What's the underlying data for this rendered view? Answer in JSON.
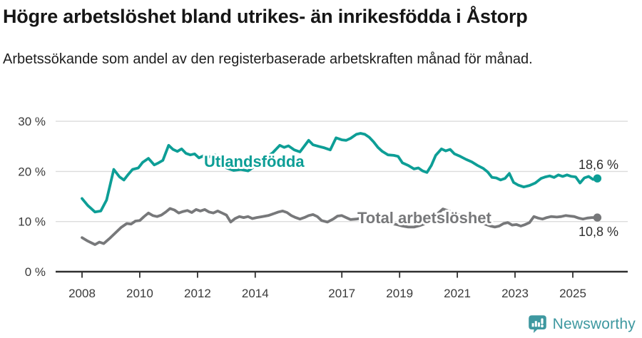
{
  "header": {
    "title": "Högre arbetslöshet bland utrikes- än inrikesfödda i Åstorp",
    "subtitle": "Arbetssökande som andel av den registerbaserade arbetskraften månad för månad."
  },
  "footer": {
    "brand": "Newsworthy"
  },
  "colors": {
    "accent_teal": "#0d9e96",
    "series_gray": "#77787a",
    "logo_teal": "#3e98a0",
    "grid": "#dcdcdc",
    "axis": "#2f2f2f"
  },
  "chart_data": {
    "type": "line",
    "title": "Högre arbetslöshet bland utrikes- än inrikesfödda i Åstorp",
    "subtitle": "Arbetssökande som andel av den registerbaserade arbetskraften månad för månad.",
    "xlabel": "",
    "ylabel": "",
    "grid": "horizontal",
    "legend_position": "inline-labels",
    "xlim": [
      2007.1,
      2026.8
    ],
    "ylim": [
      0,
      31
    ],
    "x_ticks": [
      2008,
      2010,
      2012,
      2014,
      2017,
      2019,
      2021,
      2023,
      2025
    ],
    "y_ticks": [
      {
        "value": 0,
        "label": "0 %"
      },
      {
        "value": 10,
        "label": "10 %"
      },
      {
        "value": 20,
        "label": "20 %"
      },
      {
        "value": 30,
        "label": "30 %"
      }
    ],
    "series": [
      {
        "name": "Utlandsfödda",
        "color": "#0d9e96",
        "end_label": "18,6 %",
        "end_value": 18.6,
        "points": [
          [
            2008.0,
            14.6
          ],
          [
            2008.2,
            13.2
          ],
          [
            2008.45,
            11.9
          ],
          [
            2008.65,
            12.1
          ],
          [
            2008.85,
            14.3
          ],
          [
            2009.1,
            20.4
          ],
          [
            2009.3,
            18.9
          ],
          [
            2009.45,
            18.3
          ],
          [
            2009.6,
            19.4
          ],
          [
            2009.75,
            20.4
          ],
          [
            2009.95,
            20.7
          ],
          [
            2010.1,
            21.8
          ],
          [
            2010.3,
            22.6
          ],
          [
            2010.5,
            21.3
          ],
          [
            2010.65,
            21.7
          ],
          [
            2010.8,
            22.2
          ],
          [
            2011.0,
            25.2
          ],
          [
            2011.15,
            24.4
          ],
          [
            2011.3,
            24.0
          ],
          [
            2011.45,
            24.5
          ],
          [
            2011.6,
            23.6
          ],
          [
            2011.75,
            23.3
          ],
          [
            2011.9,
            23.5
          ],
          [
            2012.05,
            22.7
          ],
          [
            2012.2,
            23.1
          ],
          [
            2012.4,
            22.9
          ],
          [
            2012.6,
            23.3
          ],
          [
            2012.8,
            21.9
          ],
          [
            2013.0,
            20.7
          ],
          [
            2013.25,
            20.2
          ],
          [
            2013.5,
            20.4
          ],
          [
            2013.75,
            20.1
          ],
          [
            2014.0,
            21.1
          ],
          [
            2014.2,
            22.1
          ],
          [
            2014.4,
            22.9
          ],
          [
            2014.6,
            23.7
          ],
          [
            2014.85,
            25.2
          ],
          [
            2015.0,
            24.8
          ],
          [
            2015.15,
            25.1
          ],
          [
            2015.35,
            24.3
          ],
          [
            2015.55,
            23.9
          ],
          [
            2015.85,
            26.2
          ],
          [
            2016.0,
            25.3
          ],
          [
            2016.2,
            25.0
          ],
          [
            2016.4,
            24.7
          ],
          [
            2016.6,
            24.3
          ],
          [
            2016.8,
            26.7
          ],
          [
            2017.0,
            26.3
          ],
          [
            2017.15,
            26.2
          ],
          [
            2017.3,
            26.6
          ],
          [
            2017.5,
            27.4
          ],
          [
            2017.65,
            27.6
          ],
          [
            2017.8,
            27.4
          ],
          [
            2017.95,
            26.8
          ],
          [
            2018.1,
            25.9
          ],
          [
            2018.25,
            24.8
          ],
          [
            2018.4,
            24.0
          ],
          [
            2018.6,
            23.3
          ],
          [
            2018.8,
            23.2
          ],
          [
            2018.95,
            23.0
          ],
          [
            2019.1,
            21.7
          ],
          [
            2019.3,
            21.2
          ],
          [
            2019.5,
            20.5
          ],
          [
            2019.65,
            20.7
          ],
          [
            2019.8,
            20.1
          ],
          [
            2019.95,
            19.8
          ],
          [
            2020.1,
            21.2
          ],
          [
            2020.25,
            23.2
          ],
          [
            2020.45,
            24.5
          ],
          [
            2020.6,
            24.1
          ],
          [
            2020.75,
            24.4
          ],
          [
            2020.9,
            23.5
          ],
          [
            2021.1,
            23.0
          ],
          [
            2021.3,
            22.4
          ],
          [
            2021.5,
            21.9
          ],
          [
            2021.7,
            21.2
          ],
          [
            2021.9,
            20.6
          ],
          [
            2022.05,
            19.9
          ],
          [
            2022.2,
            18.8
          ],
          [
            2022.35,
            18.7
          ],
          [
            2022.5,
            18.3
          ],
          [
            2022.65,
            18.6
          ],
          [
            2022.8,
            19.6
          ],
          [
            2022.95,
            17.8
          ],
          [
            2023.1,
            17.3
          ],
          [
            2023.3,
            16.9
          ],
          [
            2023.5,
            17.2
          ],
          [
            2023.7,
            17.7
          ],
          [
            2023.9,
            18.6
          ],
          [
            2024.05,
            18.9
          ],
          [
            2024.2,
            19.1
          ],
          [
            2024.35,
            18.8
          ],
          [
            2024.5,
            19.3
          ],
          [
            2024.65,
            19.0
          ],
          [
            2024.8,
            19.3
          ],
          [
            2024.95,
            19.0
          ],
          [
            2025.1,
            18.9
          ],
          [
            2025.25,
            17.7
          ],
          [
            2025.4,
            18.7
          ],
          [
            2025.55,
            19.0
          ],
          [
            2025.7,
            18.4
          ],
          [
            2025.85,
            18.6
          ]
        ]
      },
      {
        "name": "Total arbetslöshet",
        "color": "#77787a",
        "end_label": "10,8 %",
        "end_value": 10.8,
        "points": [
          [
            2008.0,
            6.8
          ],
          [
            2008.2,
            6.1
          ],
          [
            2008.45,
            5.4
          ],
          [
            2008.6,
            5.9
          ],
          [
            2008.75,
            5.6
          ],
          [
            2008.95,
            6.6
          ],
          [
            2009.15,
            7.7
          ],
          [
            2009.35,
            8.8
          ],
          [
            2009.55,
            9.6
          ],
          [
            2009.7,
            9.5
          ],
          [
            2009.85,
            10.1
          ],
          [
            2010.0,
            10.2
          ],
          [
            2010.15,
            11.0
          ],
          [
            2010.3,
            11.7
          ],
          [
            2010.45,
            11.2
          ],
          [
            2010.6,
            11.0
          ],
          [
            2010.75,
            11.3
          ],
          [
            2010.9,
            11.9
          ],
          [
            2011.05,
            12.6
          ],
          [
            2011.2,
            12.3
          ],
          [
            2011.35,
            11.7
          ],
          [
            2011.5,
            12.0
          ],
          [
            2011.65,
            12.2
          ],
          [
            2011.8,
            11.8
          ],
          [
            2011.95,
            12.4
          ],
          [
            2012.1,
            12.1
          ],
          [
            2012.25,
            12.4
          ],
          [
            2012.4,
            11.9
          ],
          [
            2012.55,
            11.7
          ],
          [
            2012.7,
            12.1
          ],
          [
            2012.85,
            11.7
          ],
          [
            2013.0,
            11.3
          ],
          [
            2013.15,
            9.9
          ],
          [
            2013.3,
            10.6
          ],
          [
            2013.45,
            11.0
          ],
          [
            2013.6,
            10.8
          ],
          [
            2013.75,
            11.0
          ],
          [
            2013.9,
            10.6
          ],
          [
            2014.05,
            10.8
          ],
          [
            2014.25,
            11.0
          ],
          [
            2014.45,
            11.2
          ],
          [
            2014.65,
            11.6
          ],
          [
            2014.8,
            11.9
          ],
          [
            2014.95,
            12.1
          ],
          [
            2015.1,
            11.8
          ],
          [
            2015.25,
            11.2
          ],
          [
            2015.4,
            10.8
          ],
          [
            2015.55,
            10.5
          ],
          [
            2015.7,
            10.8
          ],
          [
            2015.85,
            11.2
          ],
          [
            2016.0,
            11.4
          ],
          [
            2016.15,
            11.0
          ],
          [
            2016.3,
            10.2
          ],
          [
            2016.5,
            9.9
          ],
          [
            2016.7,
            10.5
          ],
          [
            2016.85,
            11.1
          ],
          [
            2017.0,
            11.2
          ],
          [
            2017.15,
            10.8
          ],
          [
            2017.3,
            10.4
          ],
          [
            2017.5,
            10.5
          ],
          [
            2017.7,
            10.7
          ],
          [
            2017.9,
            10.4
          ],
          [
            2018.1,
            10.2
          ],
          [
            2018.3,
            10.0
          ],
          [
            2018.5,
            9.8
          ],
          [
            2018.7,
            9.6
          ],
          [
            2018.9,
            9.4
          ],
          [
            2019.1,
            9.1
          ],
          [
            2019.3,
            8.9
          ],
          [
            2019.5,
            8.9
          ],
          [
            2019.7,
            9.2
          ],
          [
            2019.9,
            9.6
          ],
          [
            2020.1,
            10.4
          ],
          [
            2020.3,
            11.5
          ],
          [
            2020.5,
            12.5
          ],
          [
            2020.65,
            12.2
          ],
          [
            2020.8,
            11.9
          ],
          [
            2021.0,
            11.5
          ],
          [
            2021.2,
            11.0
          ],
          [
            2021.4,
            10.6
          ],
          [
            2021.6,
            10.2
          ],
          [
            2021.8,
            9.8
          ],
          [
            2022.0,
            9.4
          ],
          [
            2022.15,
            9.1
          ],
          [
            2022.3,
            8.9
          ],
          [
            2022.45,
            9.1
          ],
          [
            2022.6,
            9.6
          ],
          [
            2022.75,
            9.8
          ],
          [
            2022.9,
            9.3
          ],
          [
            2023.05,
            9.4
          ],
          [
            2023.2,
            9.1
          ],
          [
            2023.35,
            9.4
          ],
          [
            2023.5,
            9.8
          ],
          [
            2023.65,
            11.0
          ],
          [
            2023.8,
            10.7
          ],
          [
            2023.95,
            10.5
          ],
          [
            2024.1,
            10.8
          ],
          [
            2024.25,
            11.0
          ],
          [
            2024.45,
            10.9
          ],
          [
            2024.6,
            11.0
          ],
          [
            2024.75,
            11.2
          ],
          [
            2024.9,
            11.1
          ],
          [
            2025.05,
            11.0
          ],
          [
            2025.2,
            10.7
          ],
          [
            2025.35,
            10.5
          ],
          [
            2025.5,
            10.7
          ],
          [
            2025.65,
            10.8
          ],
          [
            2025.85,
            10.8
          ]
        ]
      }
    ]
  }
}
